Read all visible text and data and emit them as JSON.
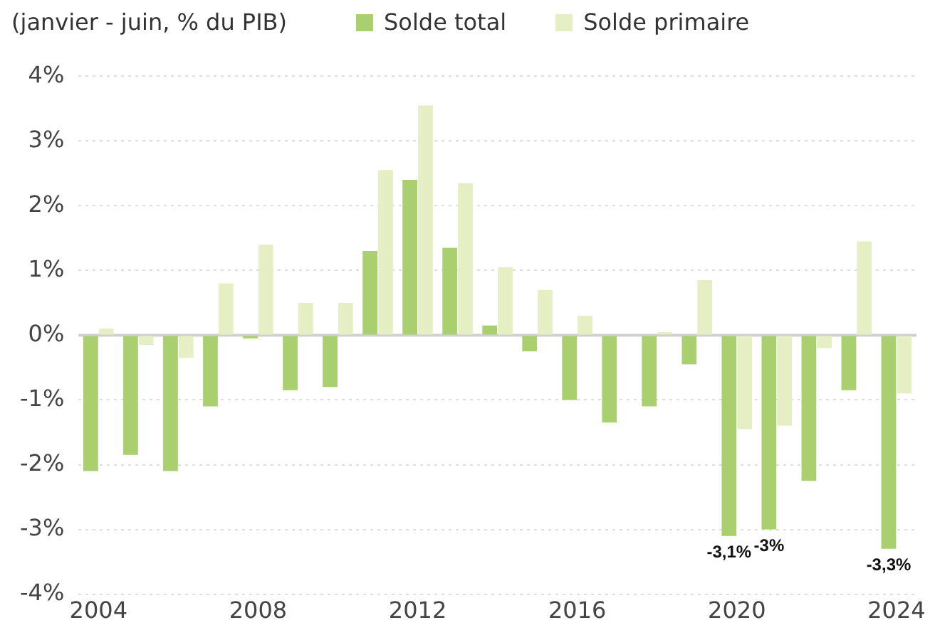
{
  "chart_data": {
    "type": "bar",
    "title": "(janvier - juin, % du PIB)",
    "categories": [
      "2004",
      null,
      null,
      null,
      "2008",
      null,
      null,
      null,
      "2012",
      null,
      null,
      null,
      "2016",
      null,
      null,
      null,
      "2020",
      null,
      null,
      null,
      "2024"
    ],
    "series": [
      {
        "name": "Solde total",
        "color": "#a9cf6e",
        "values": [
          -2.1,
          -1.85,
          -2.1,
          -1.1,
          -0.05,
          -0.85,
          -0.8,
          1.3,
          2.4,
          1.35,
          0.15,
          -0.25,
          -1.0,
          -1.35,
          -1.1,
          -0.45,
          -3.1,
          -3.0,
          -2.25,
          -0.85,
          -3.3
        ],
        "value_labels": [
          null,
          null,
          null,
          null,
          null,
          null,
          null,
          null,
          null,
          null,
          null,
          null,
          null,
          null,
          null,
          null,
          "-3,1%",
          "-3%",
          null,
          null,
          "-3,3%"
        ]
      },
      {
        "name": "Solde primaire",
        "color": "#e6efc4",
        "values": [
          0.1,
          -0.15,
          -0.35,
          0.8,
          1.4,
          0.5,
          0.5,
          2.55,
          3.55,
          2.35,
          1.05,
          0.7,
          0.3,
          0,
          0.05,
          0.85,
          -1.45,
          -1.4,
          -0.2,
          1.45,
          -0.9
        ]
      }
    ],
    "ylim": [
      -4,
      4
    ],
    "yticks": [
      {
        "value": -4,
        "label": "-4%"
      },
      {
        "value": -3,
        "label": "-3%"
      },
      {
        "value": -2,
        "label": "-2%"
      },
      {
        "value": -1,
        "label": "-1%"
      },
      {
        "value": 0,
        "label": "0%"
      },
      {
        "value": 1,
        "label": "1%"
      },
      {
        "value": 2,
        "label": "2%"
      },
      {
        "value": 3,
        "label": "3%"
      },
      {
        "value": 4,
        "label": "4%"
      }
    ],
    "grid": "y",
    "legend": "top"
  }
}
